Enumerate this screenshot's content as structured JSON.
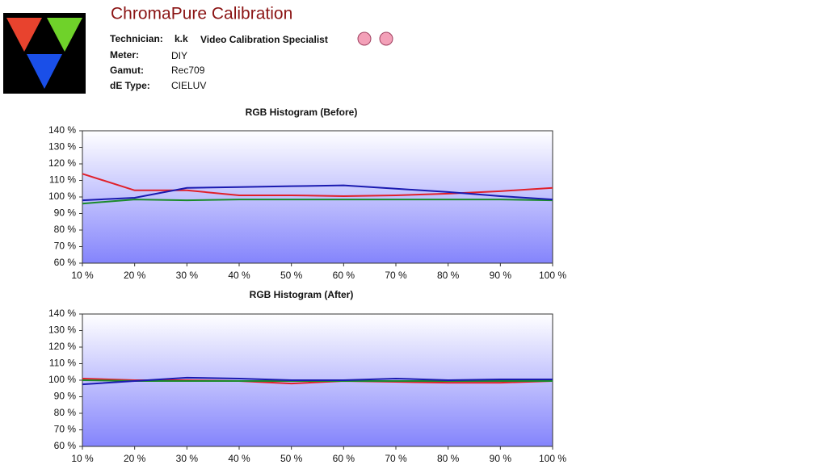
{
  "header": {
    "title": "ChromaPure Calibration",
    "fields": [
      {
        "label": "Technician:",
        "value": "k.k",
        "extra": "Video Calibration Specialist"
      },
      {
        "label": "Meter:",
        "value": "DIY"
      },
      {
        "label": "Gamut:",
        "value": "Rec709"
      },
      {
        "label": "dE Type:",
        "value": "CIELUV"
      }
    ]
  },
  "chart_data": [
    {
      "type": "line",
      "title": "RGB Histogram (Before)",
      "categories": [
        "10 %",
        "20 %",
        "30 %",
        "40 %",
        "50 %",
        "60 %",
        "70 %",
        "80 %",
        "90 %",
        "100 %"
      ],
      "series": [
        {
          "color": "#e0202a",
          "values": [
            114,
            104,
            104,
            101,
            101,
            100.5,
            101,
            102,
            103.5,
            105.5
          ]
        },
        {
          "color": "#1a8a2a",
          "values": [
            96,
            98.5,
            98,
            98.5,
            98.5,
            98.5,
            98.5,
            98.5,
            98.5,
            98
          ]
        },
        {
          "color": "#1a1ab0",
          "values": [
            98,
            99.5,
            105.5,
            106,
            106.5,
            107,
            105,
            103,
            100.5,
            98.5
          ]
        }
      ],
      "ylim": [
        60,
        140
      ],
      "yticks": [
        {
          "value": 60,
          "label": "60 %"
        },
        {
          "value": 70,
          "label": "70 %"
        },
        {
          "value": 80,
          "label": "80 %"
        },
        {
          "value": 90,
          "label": "90 %"
        },
        {
          "value": 100,
          "label": "100 %"
        },
        {
          "value": 110,
          "label": "110 %"
        },
        {
          "value": 120,
          "label": "120 %"
        },
        {
          "value": 130,
          "label": "130 %"
        },
        {
          "value": 140,
          "label": "140 %"
        }
      ]
    },
    {
      "type": "line",
      "title": "RGB Histogram (After)",
      "categories": [
        "10 %",
        "20 %",
        "30 %",
        "40 %",
        "50 %",
        "60 %",
        "70 %",
        "80 %",
        "90 %",
        "100 %"
      ],
      "series": [
        {
          "color": "#e0202a",
          "values": [
            101,
            100,
            100,
            99.5,
            98,
            99.5,
            99,
            98.5,
            98.5,
            99.5
          ]
        },
        {
          "color": "#1a8a2a",
          "values": [
            100,
            99.5,
            99.5,
            99.5,
            99.5,
            99.5,
            99.5,
            99.5,
            99.5,
            99.5
          ]
        },
        {
          "color": "#1a1ab0",
          "values": [
            97.5,
            99.5,
            101.5,
            101,
            100,
            100,
            101,
            100,
            100.5,
            100.5
          ]
        }
      ],
      "ylim": [
        60,
        140
      ],
      "yticks": [
        {
          "value": 60,
          "label": "60 %"
        },
        {
          "value": 70,
          "label": "70 %"
        },
        {
          "value": 80,
          "label": "80 %"
        },
        {
          "value": 90,
          "label": "90 %"
        },
        {
          "value": 100,
          "label": "100 %"
        },
        {
          "value": 110,
          "label": "110 %"
        },
        {
          "value": 120,
          "label": "120 %"
        },
        {
          "value": 130,
          "label": "130 %"
        },
        {
          "value": 140,
          "label": "140 %"
        }
      ]
    }
  ]
}
